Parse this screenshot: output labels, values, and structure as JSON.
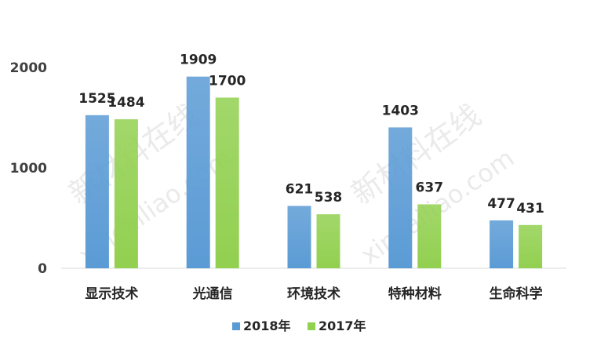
{
  "chart_data": {
    "type": "bar",
    "categories": [
      "显示技术",
      "光通信",
      "环境技术",
      "特种材料",
      "生命科学"
    ],
    "series": [
      {
        "name": "2018年",
        "values": [
          1525,
          1909,
          621,
          1403,
          477
        ],
        "color": "#5b9bd5"
      },
      {
        "name": "2017年",
        "values": [
          1484,
          1700,
          538,
          637,
          431
        ],
        "color": "#92d050"
      }
    ],
    "yticks": [
      0,
      1000,
      2000
    ],
    "ylim": [
      0,
      2000
    ],
    "grid": false,
    "legend_position": "bottom"
  },
  "watermark": {
    "cn": "新材料在线",
    "en": "xincailiao.com"
  }
}
